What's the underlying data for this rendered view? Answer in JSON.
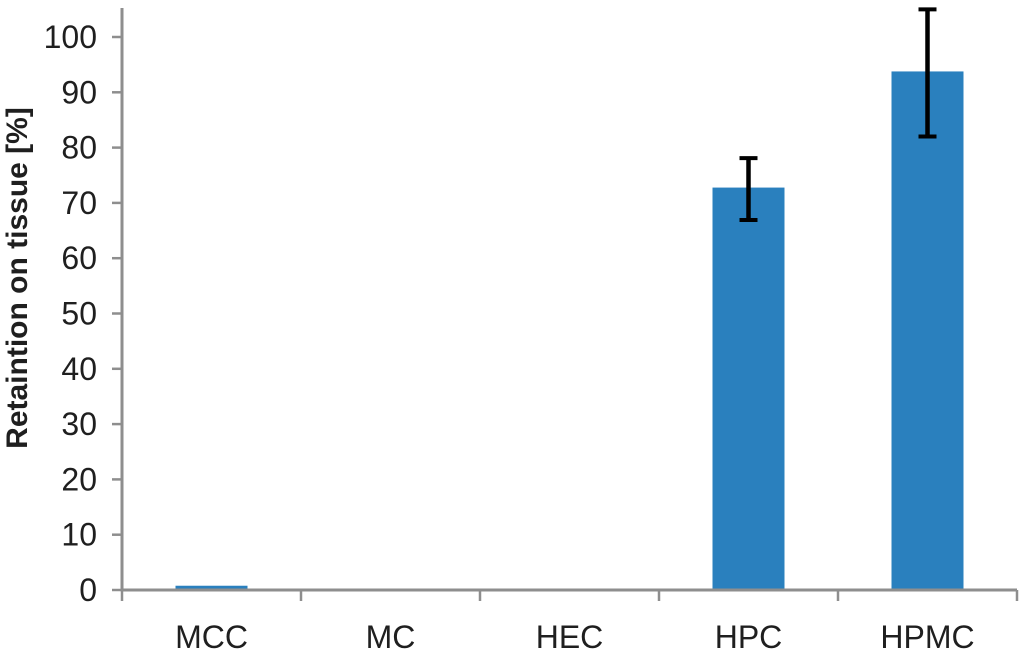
{
  "chart_data": {
    "type": "bar",
    "title": "",
    "xlabel": "",
    "ylabel": "Retaintion on tissue [%]",
    "categories": [
      "MCC",
      "MC",
      "HEC",
      "HPC",
      "HPMC"
    ],
    "values": [
      0.5,
      0,
      0,
      72.5,
      93.5
    ],
    "error_bars": [
      0,
      0,
      0,
      5.6,
      11.5
    ],
    "ylim": [
      0,
      100
    ],
    "ytick_step": 10,
    "ytick_labels": [
      "0",
      "10",
      "20",
      "30",
      "40",
      "50",
      "60",
      "70",
      "80",
      "90",
      "100"
    ],
    "grid": false,
    "legend": "none",
    "bar_color": "#2A80BE",
    "axis_color": "#8E8E8E",
    "error_bar_color": "#000000",
    "text_color": "#1f1f1f",
    "background_color": "#ffffff"
  }
}
